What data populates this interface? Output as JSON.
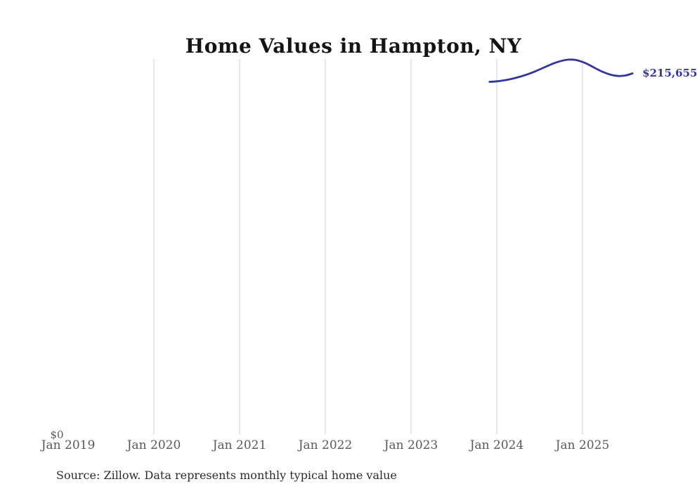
{
  "title": "Home Values in Hampton, NY",
  "source_note": "Source: Zillow. Data represents monthly typical home value",
  "end_label": "$215,655",
  "y_axis": {
    "zero_label": "$0"
  },
  "x_axis": {
    "ticks": [
      "Jan 2019",
      "Jan 2020",
      "Jan 2021",
      "Jan 2022",
      "Jan 2023",
      "Jan 2024",
      "Jan 2025"
    ]
  },
  "colors": {
    "line": "#35359a",
    "value_label": "#35359a",
    "gridline": "#cfcfcf",
    "tick_label": "#595959",
    "zero_label": "#595959",
    "title": "#141414",
    "source": "#2b2b2b",
    "background": "#ffffff"
  },
  "chart_data": {
    "type": "line",
    "title": "Home Values in Hampton, NY",
    "x": [
      "Dec 2023",
      "Jan 2024",
      "Feb 2024",
      "Mar 2024",
      "Apr 2024",
      "May 2024",
      "Jun 2024",
      "Jul 2024",
      "Aug 2024",
      "Sep 2024",
      "Oct 2024",
      "Nov 2024",
      "Dec 2024",
      "Jan 2025",
      "Feb 2025",
      "Mar 2025",
      "Apr 2025",
      "May 2025",
      "Jun 2025",
      "Jul 2025",
      "Aug 2025"
    ],
    "values": [
      210600,
      210900,
      211500,
      212300,
      213400,
      214700,
      216200,
      218000,
      219900,
      221700,
      223100,
      223900,
      223700,
      222500,
      220600,
      218300,
      216300,
      214800,
      214100,
      214400,
      215655
    ],
    "xlabel": "",
    "ylabel": "",
    "ylim": [
      0,
      224300
    ],
    "x_tick_labels": [
      "Jan 2019",
      "Jan 2020",
      "Jan 2021",
      "Jan 2022",
      "Jan 2023",
      "Jan 2024",
      "Jan 2025"
    ],
    "y_tick_labels": [
      "$0"
    ],
    "grid": "vertical-only",
    "legend": "none",
    "last_point_label": "$215,655"
  }
}
